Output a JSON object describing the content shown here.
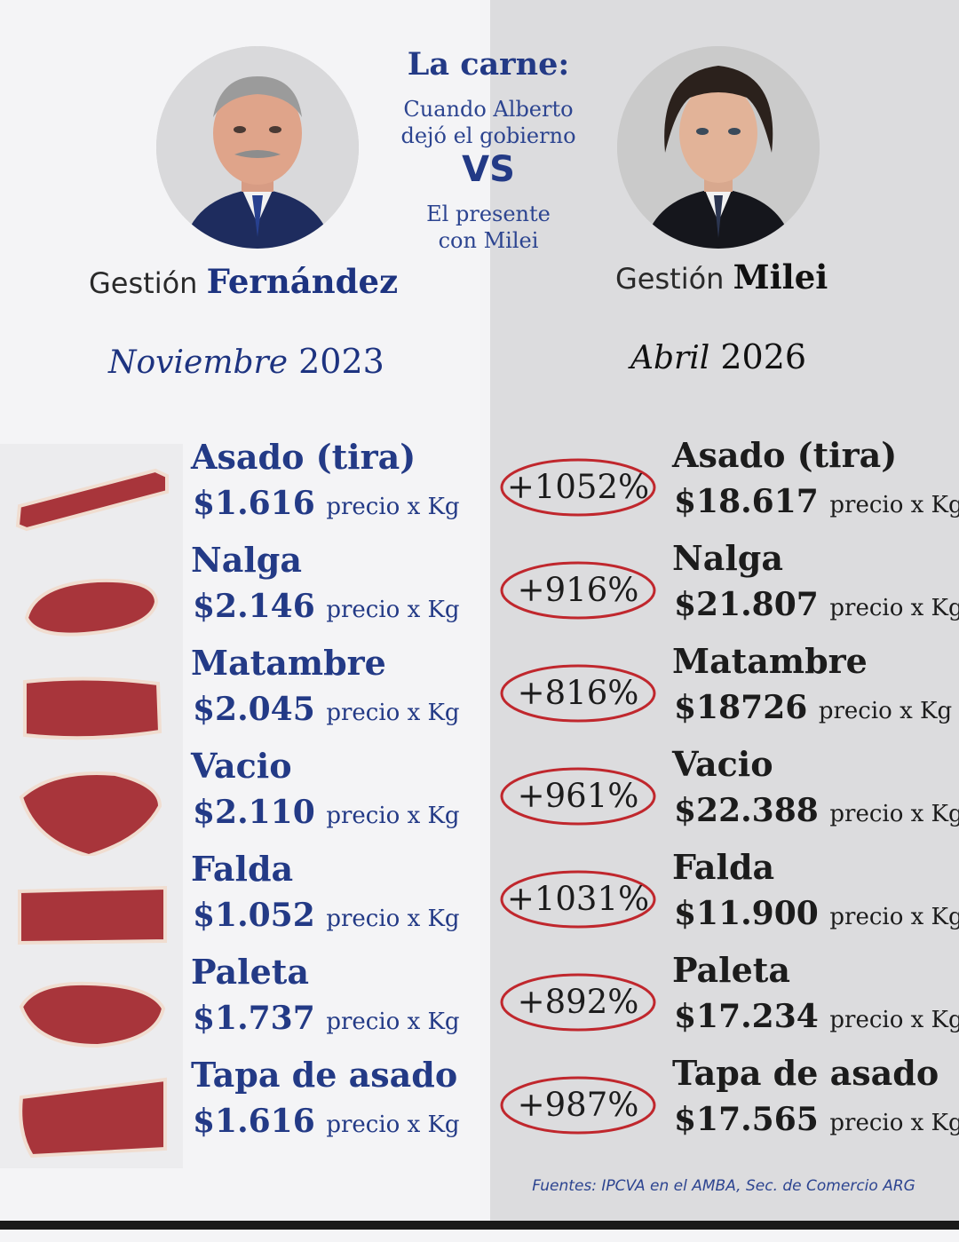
{
  "header": {
    "title": "La carne:",
    "subtitle_top": [
      "Cuando Alberto",
      "dejó el gobierno"
    ],
    "vs": "VS",
    "subtitle_bottom": [
      "El presente",
      "con Milei"
    ]
  },
  "left": {
    "gestion_prefix": "Gestión",
    "gestion_name": "Fernández",
    "period_month": "Noviembre",
    "period_year": "2023"
  },
  "right": {
    "gestion_prefix": "Gestión",
    "gestion_name": "Milei",
    "period_month": "Abril",
    "period_year": "2026"
  },
  "unit_label": "precio x Kg",
  "cuts": [
    {
      "name": "Asado (tira)",
      "left_price": "$1.616",
      "change": "+1052%",
      "right_price": "$18.617"
    },
    {
      "name": "Nalga",
      "left_price": "$2.146",
      "change": "+916%",
      "right_price": "$21.807"
    },
    {
      "name": "Matambre",
      "left_price": "$2.045",
      "change": "+816%",
      "right_price": "$18726"
    },
    {
      "name": "Vacio",
      "left_price": "$2.110",
      "change": "+961%",
      "right_price": "$22.388"
    },
    {
      "name": "Falda",
      "left_price": "$1.052",
      "change": "+1031%",
      "right_price": "$11.900"
    },
    {
      "name": "Paleta",
      "left_price": "$1.737",
      "change": "+892%",
      "right_price": "$17.234"
    },
    {
      "name": "Tapa de asado",
      "left_price": "$1.616",
      "change": "+987%",
      "right_price": "$17.565"
    }
  ],
  "source": "Fuentes: IPCVA en el AMBA, Sec. de Comercio ARG",
  "colors": {
    "navy": "#233a86",
    "circle_red": "#c0272d",
    "meat": "#a8353b",
    "fat": "#f0ddd0"
  }
}
